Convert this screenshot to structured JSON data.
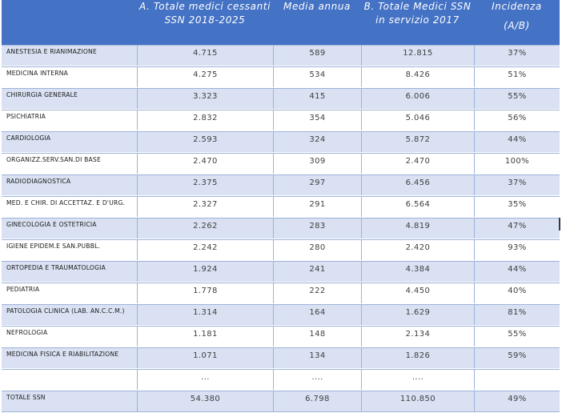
{
  "table": {
    "headers": [
      {
        "line1": "",
        "line2": ""
      },
      {
        "line1": "A. Totale medici cessanti",
        "line2": "SSN 2018-2025"
      },
      {
        "line1": "Media annua",
        "line2": ""
      },
      {
        "line1": "B. Totale Medici SSN",
        "line2": "in servizio 2017"
      },
      {
        "line1": "Incidenza",
        "line2": "(A/B)"
      }
    ],
    "rows": [
      {
        "name": "ANESTESIA E RIANIMAZIONE",
        "a": "4.715",
        "media": "589",
        "b": "12.815",
        "inc": "37%"
      },
      {
        "name": "MEDICINA INTERNA",
        "a": "4.275",
        "media": "534",
        "b": "8.426",
        "inc": "51%"
      },
      {
        "name": "CHIRURGIA GENERALE",
        "a": "3.323",
        "media": "415",
        "b": "6.006",
        "inc": "55%"
      },
      {
        "name": "PSICHIATRIA",
        "a": "2.832",
        "media": "354",
        "b": "5.046",
        "inc": "56%"
      },
      {
        "name": "CARDIOLOGIA",
        "a": "2.593",
        "media": "324",
        "b": "5.872",
        "inc": "44%"
      },
      {
        "name": "ORGANIZZ.SERV.SAN.DI BASE",
        "a": "2.470",
        "media": "309",
        "b": "2.470",
        "inc": "100%"
      },
      {
        "name": "RADIODIAGNOSTICA",
        "a": "2.375",
        "media": "297",
        "b": "6.456",
        "inc": "37%"
      },
      {
        "name": "MED. E CHIR. DI ACCETTAZ. E D'URG.",
        "a": "2.327",
        "media": "291",
        "b": "6.564",
        "inc": "35%"
      },
      {
        "name": "GINECOLOGIA E OSTETRICIA",
        "a": "2.262",
        "media": "283",
        "b": "4.819",
        "inc": "47%"
      },
      {
        "name": "IGIENE EPIDEM.E SAN.PUBBL.",
        "a": "2.242",
        "media": "280",
        "b": "2.420",
        "inc": "93%"
      },
      {
        "name": "ORTOPEDIA E TRAUMATOLOGIA",
        "a": "1.924",
        "media": "241",
        "b": "4.384",
        "inc": "44%"
      },
      {
        "name": "PEDIATRIA",
        "a": "1.778",
        "media": "222",
        "b": "4.450",
        "inc": "40%"
      },
      {
        "name": "PATOLOGIA CLINICA (LAB. AN.C.C.M.)",
        "a": "1.314",
        "media": "164",
        "b": "1.629",
        "inc": "81%"
      },
      {
        "name": "NEFROLOGIA",
        "a": "1.181",
        "media": "148",
        "b": "2.134",
        "inc": "55%"
      },
      {
        "name": "MEDICINA FISICA E RIABILITAZIONE",
        "a": "1.071",
        "media": "134",
        "b": "1.826",
        "inc": "59%"
      },
      {
        "name": "",
        "a": "...",
        "media": "....",
        "b": "....",
        "inc": ""
      },
      {
        "name": "TOTALE SSN",
        "a": "54.380",
        "media": "6.798",
        "b": "110.850",
        "inc": "49%"
      }
    ]
  }
}
